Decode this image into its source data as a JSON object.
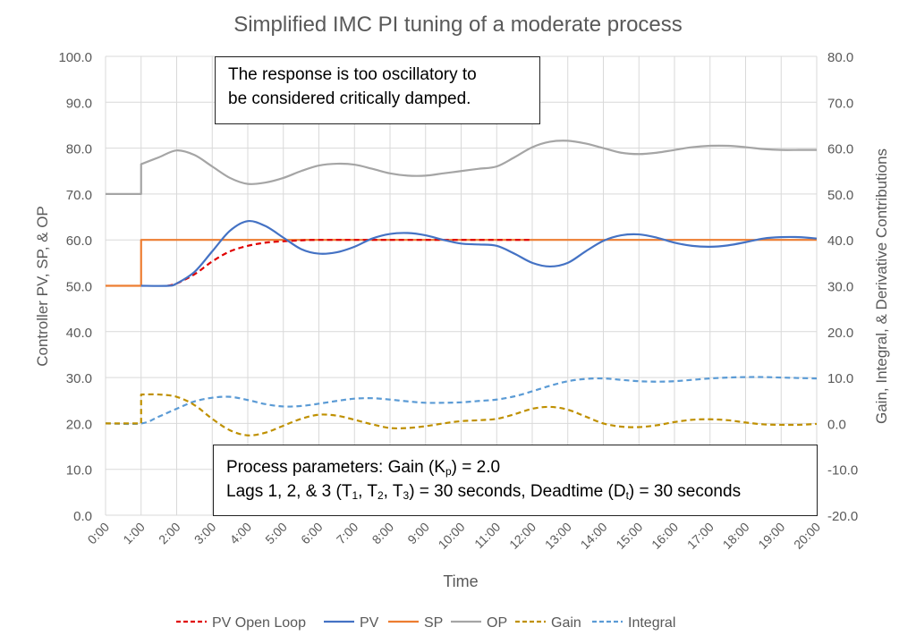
{
  "chart_data": {
    "type": "line",
    "title": "Simplified IMC PI tuning of a moderate process",
    "xlabel": "Time",
    "ylabel_left": "Controller PV, SP, & OP",
    "ylabel_right": "Gain, Integral, & Derivative Contributions",
    "xlim": [
      "0:00",
      "20:00"
    ],
    "ylim_left": [
      0,
      100
    ],
    "ylim_right": [
      -20,
      80
    ],
    "grid": true,
    "legend_position": "bottom",
    "x_ticks": [
      "0:00",
      "1:00",
      "2:00",
      "3:00",
      "4:00",
      "5:00",
      "6:00",
      "7:00",
      "8:00",
      "9:00",
      "10:00",
      "11:00",
      "12:00",
      "13:00",
      "14:00",
      "15:00",
      "16:00",
      "17:00",
      "18:00",
      "19:00",
      "20:00"
    ],
    "y_ticks_left": [
      "0.0",
      "10.0",
      "20.0",
      "30.0",
      "40.0",
      "50.0",
      "60.0",
      "70.0",
      "80.0",
      "90.0",
      "100.0"
    ],
    "y_ticks_right": [
      "-20.0",
      "-10.0",
      "0.0",
      "10.0",
      "20.0",
      "30.0",
      "40.0",
      "50.0",
      "60.0",
      "70.0",
      "80.0"
    ],
    "series": [
      {
        "name": "PV Open Loop",
        "axis": "left",
        "color": "#e00000",
        "dashed": true,
        "points": [
          [
            "1:45",
            50
          ],
          [
            "2:00",
            50.5
          ],
          [
            "2:30",
            52.5
          ],
          [
            "3:00",
            55.3
          ],
          [
            "3:30",
            57.5
          ],
          [
            "4:00",
            58.7
          ],
          [
            "4:30",
            59.4
          ],
          [
            "5:00",
            59.7
          ],
          [
            "5:30",
            59.9
          ],
          [
            "6:00",
            60
          ],
          [
            "8:00",
            60
          ],
          [
            "10:00",
            60
          ],
          [
            "12:00",
            60
          ]
        ]
      },
      {
        "name": "PV",
        "axis": "left",
        "color": "#4472c4",
        "dashed": false,
        "points": [
          [
            "1:00",
            50
          ],
          [
            "1:45",
            50
          ],
          [
            "2:00",
            50.5
          ],
          [
            "2:30",
            53
          ],
          [
            "3:00",
            57.5
          ],
          [
            "3:30",
            62
          ],
          [
            "4:00",
            64.1
          ],
          [
            "4:30",
            63
          ],
          [
            "5:00",
            60.5
          ],
          [
            "5:30",
            58
          ],
          [
            "6:00",
            57
          ],
          [
            "6:30",
            57.3
          ],
          [
            "7:00",
            58.5
          ],
          [
            "7:30",
            60.3
          ],
          [
            "8:00",
            61.3
          ],
          [
            "8:30",
            61.5
          ],
          [
            "9:00",
            61
          ],
          [
            "9:30",
            60
          ],
          [
            "10:00",
            59.2
          ],
          [
            "10:30",
            59
          ],
          [
            "11:00",
            58.7
          ],
          [
            "11:30",
            57
          ],
          [
            "12:00",
            55
          ],
          [
            "12:30",
            54.2
          ],
          [
            "13:00",
            55
          ],
          [
            "13:30",
            57.5
          ],
          [
            "14:00",
            59.8
          ],
          [
            "14:30",
            61
          ],
          [
            "15:00",
            61.2
          ],
          [
            "15:30",
            60.5
          ],
          [
            "16:00",
            59.4
          ],
          [
            "16:30",
            58.7
          ],
          [
            "17:00",
            58.5
          ],
          [
            "17:30",
            58.8
          ],
          [
            "18:00",
            59.5
          ],
          [
            "18:30",
            60.3
          ],
          [
            "19:00",
            60.6
          ],
          [
            "19:30",
            60.6
          ],
          [
            "20:00",
            60.3
          ]
        ]
      },
      {
        "name": "SP",
        "axis": "left",
        "color": "#ed7d31",
        "dashed": false,
        "points": [
          [
            "0:00",
            50
          ],
          [
            "1:00",
            50
          ],
          [
            "1:00",
            60
          ],
          [
            "20:00",
            60
          ]
        ]
      },
      {
        "name": "OP",
        "axis": "left",
        "color": "#a5a5a5",
        "dashed": false,
        "points": [
          [
            "0:00",
            70
          ],
          [
            "1:00",
            70
          ],
          [
            "1:00",
            76.5
          ],
          [
            "1:30",
            78
          ],
          [
            "2:00",
            79.5
          ],
          [
            "2:30",
            78.5
          ],
          [
            "3:00",
            76
          ],
          [
            "3:30",
            73.5
          ],
          [
            "4:00",
            72.2
          ],
          [
            "4:30",
            72.5
          ],
          [
            "5:00",
            73.5
          ],
          [
            "5:30",
            75
          ],
          [
            "6:00",
            76.2
          ],
          [
            "6:30",
            76.6
          ],
          [
            "7:00",
            76.4
          ],
          [
            "7:30",
            75.5
          ],
          [
            "8:00",
            74.5
          ],
          [
            "8:30",
            74
          ],
          [
            "9:00",
            74
          ],
          [
            "9:30",
            74.5
          ],
          [
            "10:00",
            75
          ],
          [
            "10:30",
            75.5
          ],
          [
            "11:00",
            76
          ],
          [
            "11:30",
            78
          ],
          [
            "12:00",
            80.2
          ],
          [
            "12:30",
            81.4
          ],
          [
            "13:00",
            81.6
          ],
          [
            "13:30",
            81
          ],
          [
            "14:00",
            80
          ],
          [
            "14:30",
            79
          ],
          [
            "15:00",
            78.7
          ],
          [
            "15:30",
            79
          ],
          [
            "16:00",
            79.6
          ],
          [
            "16:30",
            80.2
          ],
          [
            "17:00",
            80.5
          ],
          [
            "17:30",
            80.5
          ],
          [
            "18:00",
            80.2
          ],
          [
            "18:30",
            79.8
          ],
          [
            "19:00",
            79.6
          ],
          [
            "19:30",
            79.6
          ],
          [
            "20:00",
            79.6
          ]
        ]
      },
      {
        "name": "Gain",
        "axis": "right",
        "color": "#bf9000",
        "dashed": true,
        "points": [
          [
            "0:00",
            0
          ],
          [
            "1:00",
            0
          ],
          [
            "1:00",
            6.3
          ],
          [
            "1:30",
            6.3
          ],
          [
            "2:00",
            5.8
          ],
          [
            "2:30",
            4
          ],
          [
            "3:00",
            1
          ],
          [
            "3:30",
            -1.5
          ],
          [
            "4:00",
            -2.6
          ],
          [
            "4:30",
            -2
          ],
          [
            "5:00",
            -0.5
          ],
          [
            "5:30",
            1
          ],
          [
            "6:00",
            1.9
          ],
          [
            "6:30",
            1.7
          ],
          [
            "7:00",
            0.8
          ],
          [
            "7:30",
            -0.2
          ],
          [
            "8:00",
            -1
          ],
          [
            "8:30",
            -1
          ],
          [
            "9:00",
            -0.6
          ],
          [
            "9:30",
            0
          ],
          [
            "10:00",
            0.5
          ],
          [
            "10:30",
            0.7
          ],
          [
            "11:00",
            1
          ],
          [
            "11:30",
            2
          ],
          [
            "12:00",
            3.2
          ],
          [
            "12:30",
            3.6
          ],
          [
            "13:00",
            3
          ],
          [
            "13:30",
            1.5
          ],
          [
            "14:00",
            0
          ],
          [
            "14:30",
            -0.7
          ],
          [
            "15:00",
            -0.8
          ],
          [
            "15:30",
            -0.4
          ],
          [
            "16:00",
            0.3
          ],
          [
            "16:30",
            0.8
          ],
          [
            "17:00",
            0.9
          ],
          [
            "17:30",
            0.7
          ],
          [
            "18:00",
            0.2
          ],
          [
            "18:30",
            -0.2
          ],
          [
            "19:00",
            -0.3
          ],
          [
            "19:30",
            -0.3
          ],
          [
            "20:00",
            -0.1
          ]
        ]
      },
      {
        "name": "Integral",
        "axis": "right",
        "color": "#5b9bd5",
        "dashed": true,
        "points": [
          [
            "0:00",
            0
          ],
          [
            "1:00",
            0
          ],
          [
            "1:30",
            1.5
          ],
          [
            "2:00",
            3.2
          ],
          [
            "2:30",
            4.8
          ],
          [
            "3:00",
            5.6
          ],
          [
            "3:30",
            5.8
          ],
          [
            "4:00",
            5.1
          ],
          [
            "4:30",
            4.2
          ],
          [
            "5:00",
            3.7
          ],
          [
            "5:30",
            3.8
          ],
          [
            "6:00",
            4.3
          ],
          [
            "6:30",
            4.9
          ],
          [
            "7:00",
            5.4
          ],
          [
            "7:30",
            5.5
          ],
          [
            "8:00",
            5.2
          ],
          [
            "8:30",
            4.8
          ],
          [
            "9:00",
            4.5
          ],
          [
            "9:30",
            4.5
          ],
          [
            "10:00",
            4.6
          ],
          [
            "10:30",
            4.9
          ],
          [
            "11:00",
            5.2
          ],
          [
            "11:30",
            5.9
          ],
          [
            "12:00",
            7
          ],
          [
            "12:30",
            8.2
          ],
          [
            "13:00",
            9.2
          ],
          [
            "13:30",
            9.7
          ],
          [
            "14:00",
            9.8
          ],
          [
            "14:30",
            9.5
          ],
          [
            "15:00",
            9.2
          ],
          [
            "15:30",
            9.1
          ],
          [
            "16:00",
            9.2
          ],
          [
            "16:30",
            9.5
          ],
          [
            "17:00",
            9.8
          ],
          [
            "17:30",
            10
          ],
          [
            "18:00",
            10.1
          ],
          [
            "18:30",
            10.1
          ],
          [
            "19:00",
            10
          ],
          [
            "19:30",
            9.9
          ],
          [
            "20:00",
            9.8
          ]
        ]
      }
    ],
    "annotations": {
      "top_note": {
        "line1": "The response is too oscillatory to",
        "line2": "be considered critically damped."
      },
      "params": {
        "l1_a": "Process parameters:  Gain (K",
        "l1_sub": "p",
        "l1_b": ") = 2.0",
        "l2_a": "Lags 1, 2, & 3 (T",
        "l2_s1": "1",
        "l2_b": ", T",
        "l2_s2": "2",
        "l2_c": ", T",
        "l2_s3": "3",
        "l2_d": ") = 30 seconds, Deadtime (D",
        "l2_s4": "t",
        "l2_e": ") = 30 seconds"
      }
    }
  }
}
